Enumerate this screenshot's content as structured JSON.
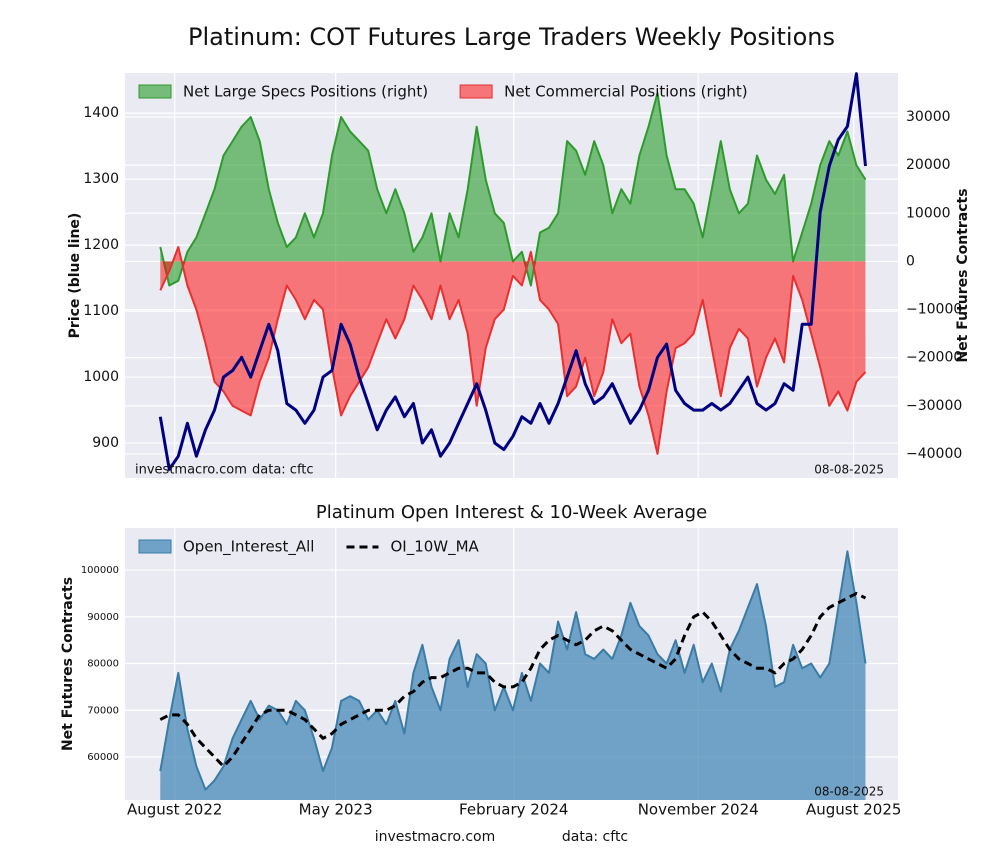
{
  "chart_data": [
    {
      "type": "combo",
      "title": "Platinum: COT Futures Large Traders Weekly Positions",
      "ylabel": "Price (blue line)",
      "y2label": "Net Futures Contracts",
      "xlim": [
        -3.9,
        81.6
      ],
      "ylim": [
        847,
        1461
      ],
      "yticks": [
        900,
        1000,
        1100,
        1200,
        1300,
        1400
      ],
      "y2lim": [
        -45000,
        39150
      ],
      "y2ticks": [
        {
          "value": -40000,
          "label": "−40000"
        },
        {
          "value": -30000,
          "label": "−30000"
        },
        {
          "value": -20000,
          "label": "−20000"
        },
        {
          "value": -10000,
          "label": "−10000"
        },
        0,
        10000,
        20000,
        30000
      ],
      "grid": true,
      "legend": "upper left",
      "annotations": {
        "source": "investmacro.com",
        "data": "data: cftc",
        "date": "08-08-2025"
      },
      "series": [
        {
          "name": "Net Large Specs Positions (right)",
          "type": "area",
          "axis": "y2",
          "color": "#2e9a2e",
          "fill": "rgba(0,140,0,0.5)",
          "values": [
            3000,
            -5000,
            -4000,
            2000,
            5000,
            10000,
            15000,
            22000,
            25000,
            28000,
            30000,
            25000,
            15000,
            8000,
            3000,
            5000,
            10000,
            5000,
            10000,
            22000,
            30000,
            27000,
            25000,
            23000,
            15000,
            10000,
            15000,
            10000,
            2000,
            5000,
            10000,
            0,
            10000,
            5000,
            15000,
            28000,
            17000,
            10000,
            8000,
            0,
            2000,
            -5000,
            6000,
            7000,
            10000,
            25000,
            23000,
            18000,
            25000,
            20000,
            10000,
            15000,
            12000,
            22000,
            28000,
            35000,
            22000,
            15000,
            15000,
            12000,
            5000,
            15000,
            25000,
            15000,
            10000,
            12000,
            22000,
            17000,
            14000,
            18000,
            0,
            6000,
            12000,
            20000,
            25000,
            22000,
            27000,
            20000,
            17000
          ]
        },
        {
          "name": "Net Commercial Positions (right)",
          "type": "area",
          "axis": "y2",
          "color": "#e83030",
          "fill": "rgba(255,0,0,0.5)",
          "values": [
            -6000,
            -2000,
            3000,
            -5000,
            -10000,
            -17000,
            -25000,
            -27000,
            -30000,
            -31000,
            -32000,
            -25000,
            -20000,
            -12000,
            -5000,
            -8000,
            -12000,
            -8000,
            -10000,
            -22000,
            -32000,
            -28000,
            -25000,
            -22000,
            -17000,
            -12000,
            -16000,
            -12000,
            -5000,
            -8000,
            -12000,
            -5000,
            -12000,
            -8000,
            -15000,
            -30000,
            -18000,
            -12000,
            -10000,
            -3000,
            -5000,
            2000,
            -8000,
            -10000,
            -13000,
            -28000,
            -26000,
            -20000,
            -28000,
            -23000,
            -12000,
            -17000,
            -15000,
            -26000,
            -32000,
            -40000,
            -27000,
            -18000,
            -17000,
            -15000,
            -8000,
            -18000,
            -28000,
            -18000,
            -14000,
            -16000,
            -26000,
            -20000,
            -16000,
            -21000,
            -3000,
            -8000,
            -15000,
            -22000,
            -30000,
            -27000,
            -31000,
            -25000,
            -23000
          ]
        },
        {
          "type": "line",
          "axis": "y",
          "color": "#000080",
          "values": [
            940,
            860,
            880,
            930,
            880,
            920,
            950,
            1000,
            1010,
            1030,
            1000,
            1040,
            1080,
            1040,
            960,
            950,
            930,
            950,
            1000,
            1010,
            1080,
            1050,
            1000,
            960,
            920,
            950,
            970,
            940,
            960,
            900,
            920,
            880,
            900,
            930,
            960,
            990,
            950,
            900,
            890,
            910,
            940,
            930,
            960,
            930,
            960,
            1000,
            1040,
            990,
            960,
            970,
            990,
            960,
            930,
            950,
            980,
            1030,
            1050,
            980,
            960,
            950,
            950,
            960,
            950,
            960,
            980,
            1000,
            960,
            950,
            960,
            990,
            980,
            1080,
            1080,
            1250,
            1320,
            1360,
            1380,
            1460,
            1320
          ]
        }
      ]
    },
    {
      "type": "combo",
      "title": "Platinum Open Interest & 10-Week Average",
      "ylabel": "Net Futures Contracts",
      "xlim": [
        -3.9,
        81.6
      ],
      "xticks": [
        {
          "value": 1.6,
          "label": "August 2022"
        },
        {
          "value": 19.4,
          "label": "May 2023"
        },
        {
          "value": 39.1,
          "label": "February 2024"
        },
        {
          "value": 59.5,
          "label": "November 2024"
        },
        {
          "value": 76.7,
          "label": "August 2025"
        }
      ],
      "ylim": [
        50800,
        109000
      ],
      "yticks": [
        60000,
        70000,
        80000,
        90000,
        100000
      ],
      "grid": true,
      "legend": "upper left",
      "annotations": {
        "date": "08-08-2025"
      },
      "footer": {
        "source": "investmacro.com",
        "data": "data: cftc"
      },
      "series": [
        {
          "name": "Open_Interest_All",
          "type": "area",
          "color": "#3a7ca5",
          "fill": "rgba(60,130,180,0.7)",
          "values": [
            57000,
            68000,
            78000,
            66000,
            58000,
            53000,
            55000,
            58000,
            64000,
            68000,
            72000,
            68000,
            71000,
            70000,
            67000,
            72000,
            70000,
            64000,
            57000,
            62000,
            72000,
            73000,
            72000,
            68000,
            70000,
            67000,
            72000,
            65000,
            78000,
            84000,
            75000,
            70000,
            81000,
            85000,
            75000,
            82000,
            80000,
            70000,
            75000,
            70000,
            78000,
            72000,
            80000,
            78000,
            89000,
            83000,
            91000,
            82000,
            81000,
            83000,
            81000,
            86000,
            93000,
            88000,
            86000,
            82000,
            80000,
            85000,
            78000,
            84000,
            76000,
            80000,
            74000,
            83000,
            87000,
            92000,
            97000,
            88000,
            75000,
            76000,
            84000,
            79000,
            80000,
            77000,
            80000,
            92000,
            104000,
            93000,
            80000
          ]
        },
        {
          "name": "OI_10W_MA",
          "type": "line",
          "style": "dashed",
          "color": "#000000",
          "values": [
            68000,
            69000,
            69000,
            67000,
            64000,
            62000,
            60000,
            58000,
            60000,
            63000,
            66000,
            69000,
            70000,
            70000,
            70000,
            69000,
            68000,
            66000,
            64000,
            65000,
            67000,
            68000,
            69000,
            70000,
            70000,
            70000,
            71000,
            73000,
            74000,
            76000,
            77000,
            77000,
            78000,
            79000,
            79000,
            78000,
            78000,
            76000,
            75000,
            75000,
            76000,
            79000,
            83000,
            85000,
            86000,
            85000,
            84000,
            85000,
            87000,
            88000,
            87000,
            85000,
            83000,
            82000,
            81000,
            80000,
            79000,
            81000,
            86000,
            90000,
            91000,
            89000,
            86000,
            83000,
            81000,
            80000,
            79000,
            79000,
            78000,
            80000,
            81000,
            83000,
            86000,
            90000,
            92000,
            93000,
            94000,
            95000,
            94000
          ]
        }
      ]
    }
  ]
}
